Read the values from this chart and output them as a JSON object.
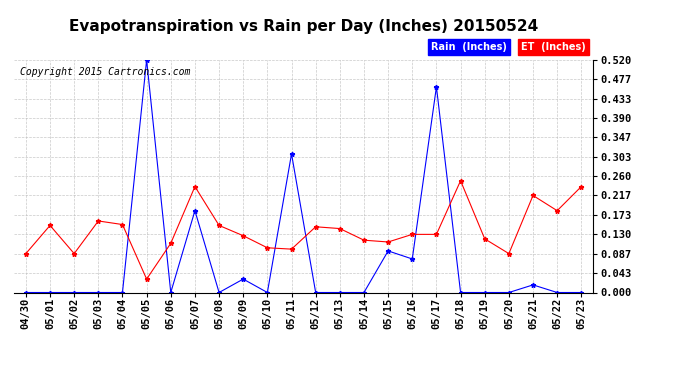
{
  "title": "Evapotranspiration vs Rain per Day (Inches) 20150524",
  "copyright": "Copyright 2015 Cartronics.com",
  "x_labels": [
    "04/30",
    "05/01",
    "05/02",
    "05/03",
    "05/04",
    "05/05",
    "05/06",
    "05/07",
    "05/08",
    "05/09",
    "05/10",
    "05/11",
    "05/12",
    "05/13",
    "05/14",
    "05/15",
    "05/16",
    "05/17",
    "05/18",
    "05/19",
    "05/20",
    "05/21",
    "05/22",
    "05/23"
  ],
  "rain_inches": [
    0.0,
    0.0,
    0.0,
    0.0,
    0.0,
    0.52,
    0.0,
    0.183,
    0.0,
    0.03,
    0.0,
    0.31,
    0.0,
    0.0,
    0.0,
    0.093,
    0.075,
    0.46,
    0.0,
    0.0,
    0.0,
    0.017,
    0.0,
    0.0
  ],
  "et_inches": [
    0.087,
    0.15,
    0.087,
    0.16,
    0.152,
    0.03,
    0.11,
    0.237,
    0.15,
    0.127,
    0.1,
    0.097,
    0.147,
    0.143,
    0.117,
    0.113,
    0.13,
    0.13,
    0.25,
    0.12,
    0.087,
    0.217,
    0.183,
    0.237
  ],
  "rain_color": "#0000FF",
  "et_color": "#FF0000",
  "background_color": "#FFFFFF",
  "plot_bg_color": "#FFFFFF",
  "grid_color": "#BBBBBB",
  "ylim": [
    0.0,
    0.52
  ],
  "yticks": [
    0.0,
    0.043,
    0.087,
    0.13,
    0.173,
    0.217,
    0.26,
    0.303,
    0.347,
    0.39,
    0.433,
    0.477,
    0.52
  ],
  "title_fontsize": 11,
  "copyright_fontsize": 7,
  "tick_fontsize": 7.5,
  "legend_rain_label": "Rain  (Inches)",
  "legend_et_label": "ET  (Inches)",
  "legend_rain_bg": "#0000FF",
  "legend_et_bg": "#FF0000",
  "legend_text_color": "#FFFFFF"
}
